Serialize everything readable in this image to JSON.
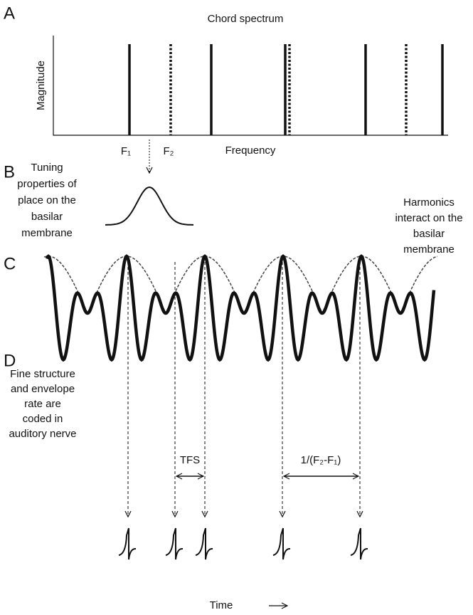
{
  "panels": [
    "A",
    "B",
    "C",
    "D"
  ],
  "spectrum": {
    "title": "Chord spectrum",
    "y_label": "Magnitude",
    "x_label": "Frequency",
    "f1": "F₁",
    "f2": "F₂"
  },
  "tuning": {
    "lines": [
      "Tuning",
      "properties of",
      "place on the",
      "basilar",
      "membrane"
    ]
  },
  "harmonics": {
    "lines": [
      "Harmonics",
      "interact  on the",
      "basilar",
      "membrane"
    ]
  },
  "coding": {
    "lines": [
      "Fine structure",
      "and envelope",
      "rate are",
      "coded in",
      "auditory nerve"
    ]
  },
  "intervals": {
    "tfs": "TFS",
    "envelope": "1/(F₂-F₁)"
  },
  "time_label": "Time"
}
